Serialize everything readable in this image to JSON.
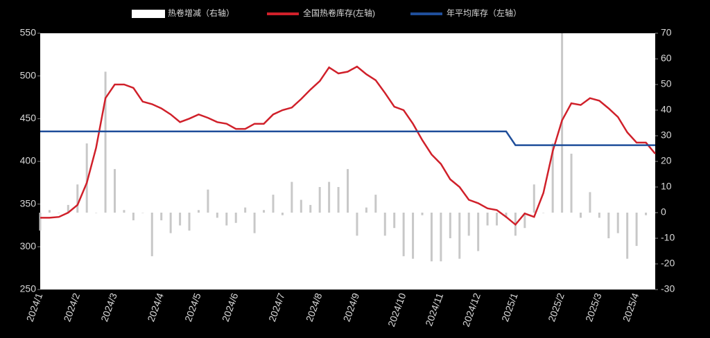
{
  "chart_data": {
    "type": "combo",
    "categories": [
      "2024/1",
      null,
      null,
      null,
      "2024/2",
      null,
      null,
      null,
      "2024/3",
      null,
      null,
      null,
      null,
      "2024/4",
      null,
      null,
      null,
      "2024/5",
      null,
      null,
      null,
      "2024/6",
      null,
      null,
      null,
      null,
      "2024/7",
      null,
      null,
      null,
      "2024/8",
      null,
      null,
      null,
      "2024/9",
      null,
      null,
      null,
      null,
      "2024/10",
      null,
      null,
      null,
      "2024/11",
      null,
      null,
      null,
      "2024/12",
      null,
      null,
      null,
      "2025/1",
      null,
      null,
      null,
      null,
      "2025/2",
      null,
      null,
      null,
      "2025/3",
      null,
      null,
      null,
      "2025/4",
      null,
      null
    ],
    "series": [
      {
        "name": "热卷增减（右轴）",
        "type": "bar",
        "axis": "y2",
        "color": "#c8c8c8",
        "values": [
          -7,
          1,
          0,
          3,
          11,
          27,
          0,
          55,
          17,
          1,
          -3,
          0,
          -17,
          -3,
          -8,
          -5,
          -7,
          1,
          9,
          -2,
          -5,
          -4,
          2,
          -8,
          1,
          7,
          -1,
          12,
          5,
          3,
          10,
          12,
          10,
          17,
          -9,
          2,
          7,
          -9,
          -6,
          -17,
          -18,
          -1,
          -19,
          -19,
          -10,
          -18,
          -9,
          -15,
          -5,
          -5,
          -2,
          -9,
          -6,
          11,
          0,
          27,
          70,
          23,
          -2,
          8,
          -2,
          -10,
          -8,
          -18,
          -13,
          -1,
          0
        ]
      },
      {
        "name": "全国热卷库存(左轴)",
        "type": "line",
        "axis": "y",
        "color": "#d0202a",
        "values": [
          334,
          334,
          335,
          340,
          349,
          375,
          416,
          474,
          490,
          490,
          486,
          470,
          467,
          462,
          455,
          446,
          450,
          455,
          451,
          446,
          444,
          438,
          438,
          444,
          444,
          455,
          460,
          463,
          473,
          484,
          494,
          510,
          503,
          505,
          511,
          502,
          495,
          480,
          464,
          460,
          444,
          425,
          408,
          397,
          379,
          370,
          355,
          351,
          345,
          343,
          335,
          326,
          339,
          335,
          363,
          412,
          448,
          468,
          466,
          474,
          471,
          462,
          452,
          434,
          422,
          422,
          409
        ]
      },
      {
        "name": "年平均库存（左轴）",
        "type": "line",
        "axis": "y",
        "color": "#1f4e9a",
        "values": [
          435,
          435,
          435,
          435,
          435,
          435,
          435,
          435,
          435,
          435,
          435,
          435,
          435,
          435,
          435,
          435,
          435,
          435,
          435,
          435,
          435,
          435,
          435,
          435,
          435,
          435,
          435,
          435,
          435,
          435,
          435,
          435,
          435,
          435,
          435,
          435,
          435,
          435,
          435,
          435,
          435,
          435,
          435,
          435,
          435,
          435,
          435,
          435,
          435,
          435,
          435,
          419,
          419,
          419,
          419,
          419,
          419,
          419,
          419,
          419,
          419,
          419,
          419,
          419,
          419,
          419,
          419
        ]
      }
    ],
    "ylim": [
      250,
      550
    ],
    "yticks": [
      250,
      300,
      350,
      400,
      450,
      500,
      550
    ],
    "y2lim": [
      -30,
      70
    ],
    "y2ticks": [
      -30,
      -20,
      -10,
      0,
      10,
      20,
      30,
      40,
      50,
      60,
      70
    ],
    "legend": "top"
  }
}
